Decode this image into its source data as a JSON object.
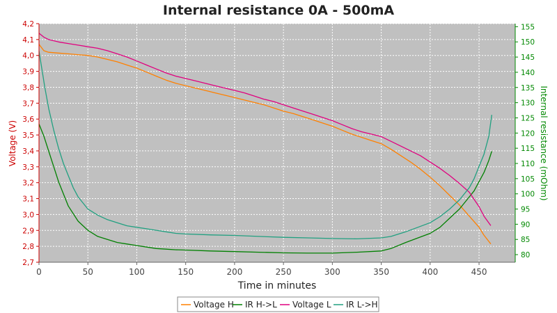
{
  "chart_data": {
    "type": "line",
    "title": "Internal resistance  0A - 500mA",
    "xlabel": "Time in minutes",
    "ylabel_left": "Voltage (V)",
    "ylabel_right": "Internal resistance (mOhm)",
    "xlim": [
      0,
      487
    ],
    "ylim_left": [
      2.7,
      4.2
    ],
    "ylim_right": [
      77.5,
      156
    ],
    "x_ticks": [
      "0",
      "50",
      "100",
      "150",
      "200",
      "250",
      "300",
      "350",
      "400",
      "450"
    ],
    "y_left_ticks": [
      "2,7",
      "2,8",
      "2,9",
      "3,0",
      "3,1",
      "3,2",
      "3,3",
      "3,4",
      "3,5",
      "3,6",
      "3,7",
      "3,8",
      "3,9",
      "4,0",
      "4,1",
      "4,2"
    ],
    "y_right_ticks": [
      "80",
      "85",
      "90",
      "95",
      "100",
      "105",
      "110",
      "115",
      "120",
      "125",
      "130",
      "135",
      "140",
      "145",
      "150",
      "155"
    ],
    "grid": true,
    "legend_position": "bottom",
    "colors": {
      "plot_bg": "#c0c0c0",
      "grid": "#ffffff",
      "left_axis": "#cc0000",
      "right_axis": "#008800"
    },
    "series": [
      {
        "name": "Voltage H",
        "axis": "left",
        "color": "#ff8000",
        "x": [
          0,
          5,
          10,
          20,
          30,
          40,
          50,
          60,
          70,
          80,
          90,
          100,
          110,
          120,
          130,
          140,
          150,
          160,
          170,
          180,
          190,
          200,
          210,
          220,
          230,
          240,
          250,
          260,
          270,
          280,
          290,
          300,
          310,
          320,
          330,
          340,
          350,
          360,
          370,
          380,
          390,
          400,
          410,
          420,
          430,
          440,
          450,
          455,
          462
        ],
        "values": [
          4.07,
          4.03,
          4.02,
          4.015,
          4.01,
          4.005,
          4.0,
          3.99,
          3.975,
          3.96,
          3.94,
          3.92,
          3.895,
          3.87,
          3.845,
          3.825,
          3.81,
          3.795,
          3.78,
          3.765,
          3.75,
          3.735,
          3.72,
          3.705,
          3.69,
          3.67,
          3.65,
          3.635,
          3.615,
          3.595,
          3.575,
          3.555,
          3.53,
          3.505,
          3.485,
          3.465,
          3.445,
          3.41,
          3.37,
          3.33,
          3.285,
          3.235,
          3.18,
          3.12,
          3.06,
          2.99,
          2.92,
          2.87,
          2.815
        ]
      },
      {
        "name": "IR H->L",
        "axis": "right",
        "color": "#008000",
        "x": [
          0,
          5,
          10,
          15,
          20,
          25,
          30,
          40,
          50,
          60,
          70,
          80,
          90,
          100,
          110,
          120,
          130,
          140,
          150,
          175,
          200,
          225,
          250,
          275,
          300,
          325,
          350,
          360,
          375,
          400,
          410,
          420,
          430,
          440,
          445,
          450,
          455,
          460,
          463
        ],
        "values": [
          123,
          119,
          114,
          109,
          104,
          100,
          96,
          91,
          88,
          86,
          85,
          84,
          83.5,
          83,
          82.5,
          82,
          81.8,
          81.6,
          81.5,
          81.2,
          81,
          80.8,
          80.6,
          80.5,
          80.5,
          80.8,
          81.2,
          82,
          84,
          87,
          89,
          92,
          95,
          99,
          101,
          104,
          107,
          111,
          114
        ]
      },
      {
        "name": "Voltage L",
        "axis": "left",
        "color": "#e0007f",
        "x": [
          0,
          5,
          10,
          20,
          30,
          40,
          50,
          60,
          70,
          80,
          90,
          100,
          110,
          120,
          130,
          140,
          150,
          160,
          170,
          180,
          190,
          200,
          210,
          220,
          230,
          240,
          250,
          260,
          270,
          280,
          290,
          300,
          310,
          320,
          330,
          340,
          350,
          360,
          370,
          380,
          390,
          400,
          410,
          420,
          430,
          440,
          450,
          455,
          462
        ],
        "values": [
          4.14,
          4.115,
          4.1,
          4.085,
          4.075,
          4.065,
          4.055,
          4.045,
          4.03,
          4.01,
          3.99,
          3.965,
          3.94,
          3.915,
          3.89,
          3.87,
          3.855,
          3.84,
          3.825,
          3.81,
          3.795,
          3.78,
          3.765,
          3.745,
          3.725,
          3.71,
          3.69,
          3.67,
          3.65,
          3.63,
          3.61,
          3.59,
          3.565,
          3.54,
          3.52,
          3.505,
          3.49,
          3.46,
          3.43,
          3.4,
          3.37,
          3.33,
          3.29,
          3.245,
          3.195,
          3.14,
          3.05,
          2.99,
          2.93
        ]
      },
      {
        "name": "IR L->H",
        "axis": "right",
        "color": "#20a080",
        "x": [
          0,
          3,
          6,
          10,
          15,
          20,
          25,
          30,
          35,
          40,
          50,
          60,
          70,
          80,
          90,
          100,
          110,
          120,
          130,
          140,
          150,
          175,
          200,
          225,
          250,
          275,
          300,
          325,
          350,
          360,
          375,
          400,
          410,
          420,
          430,
          440,
          445,
          450,
          455,
          460,
          463
        ],
        "values": [
          147,
          141,
          135,
          128,
          121,
          115,
          110,
          106,
          102,
          99,
          95,
          93,
          91.5,
          90.5,
          89.5,
          89,
          88.5,
          88,
          87.5,
          87,
          86.8,
          86.5,
          86.3,
          86,
          85.7,
          85.5,
          85.3,
          85.2,
          85.5,
          86,
          87.5,
          90.5,
          92.5,
          95,
          98,
          102,
          105,
          109,
          113,
          119,
          126
        ]
      }
    ]
  }
}
